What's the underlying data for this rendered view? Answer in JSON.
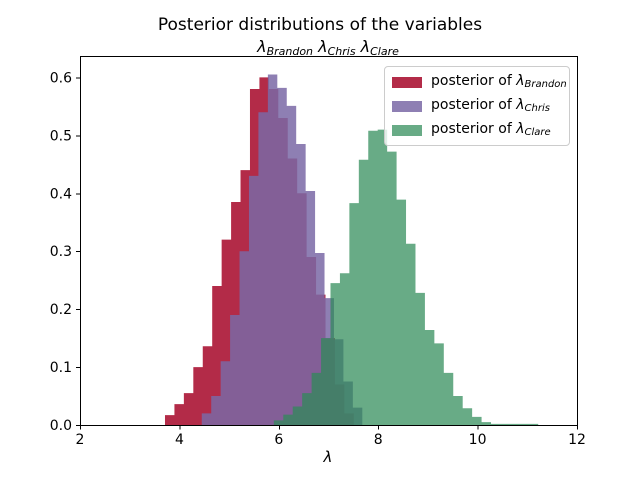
{
  "chart_data": {
    "type": "bar",
    "subtype": "histogram-stepfilled",
    "title": "Posterior distributions of the variables",
    "subtitle_groups": [
      {
        "symbol": "λ",
        "sub": "Brandon"
      },
      {
        "symbol": "λ",
        "sub": "Chris"
      },
      {
        "symbol": "λ",
        "sub": "Clare"
      }
    ],
    "xlabel": "λ",
    "xlim": [
      2,
      12
    ],
    "ylim": [
      0,
      0.637
    ],
    "xticks": [
      2,
      4,
      6,
      8,
      10,
      12
    ],
    "xtick_labels": [
      "2",
      "4",
      "6",
      "8",
      "10",
      "12"
    ],
    "yticks": [
      0.0,
      0.1,
      0.2,
      0.3,
      0.4,
      0.5,
      0.6
    ],
    "ytick_labels": [
      "0.0",
      "0.1",
      "0.2",
      "0.3",
      "0.4",
      "0.5",
      "0.6"
    ],
    "grid": false,
    "legend_position": "upper right",
    "axis_color": "#000000",
    "legend_border_color": "#cccccc",
    "legend_face_color": "rgba(255,255,255,0.8)",
    "series": [
      {
        "key": "brandon",
        "legend_prefix": "posterior of ",
        "symbol": "λ",
        "sub": "Brandon",
        "color": "#A60628",
        "alpha": 0.85,
        "bin_start": 3.71,
        "bin_width": 0.19,
        "heights": [
          0.017,
          0.036,
          0.055,
          0.1,
          0.136,
          0.24,
          0.32,
          0.385,
          0.44,
          0.58,
          0.6,
          0.58,
          0.53,
          0.46,
          0.4,
          0.29,
          0.225,
          0.15,
          0.07,
          0.02
        ]
      },
      {
        "key": "chris",
        "legend_prefix": "posterior of ",
        "symbol": "λ",
        "sub": "Chris",
        "color": "#7A68A6",
        "alpha": 0.85,
        "bin_start": 4.45,
        "bin_width": 0.19,
        "heights": [
          0.02,
          0.05,
          0.11,
          0.19,
          0.3,
          0.43,
          0.54,
          0.605,
          0.582,
          0.551,
          0.485,
          0.404,
          0.297,
          0.219,
          0.148,
          0.075,
          0.03
        ]
      },
      {
        "key": "clare",
        "legend_prefix": "posterior of ",
        "symbol": "λ",
        "sub": "Clare",
        "color": "#2E8B57",
        "alpha": 0.72,
        "bin_start": 5.9,
        "bin_width": 0.19,
        "heights": [
          0.008,
          0.018,
          0.032,
          0.055,
          0.09,
          0.15,
          0.245,
          0.262,
          0.383,
          0.458,
          0.508,
          0.51,
          0.472,
          0.389,
          0.313,
          0.228,
          0.164,
          0.141,
          0.09,
          0.05,
          0.029,
          0.014,
          0.005,
          0.002,
          0.002,
          0.002,
          0.002,
          0.002
        ]
      }
    ]
  }
}
